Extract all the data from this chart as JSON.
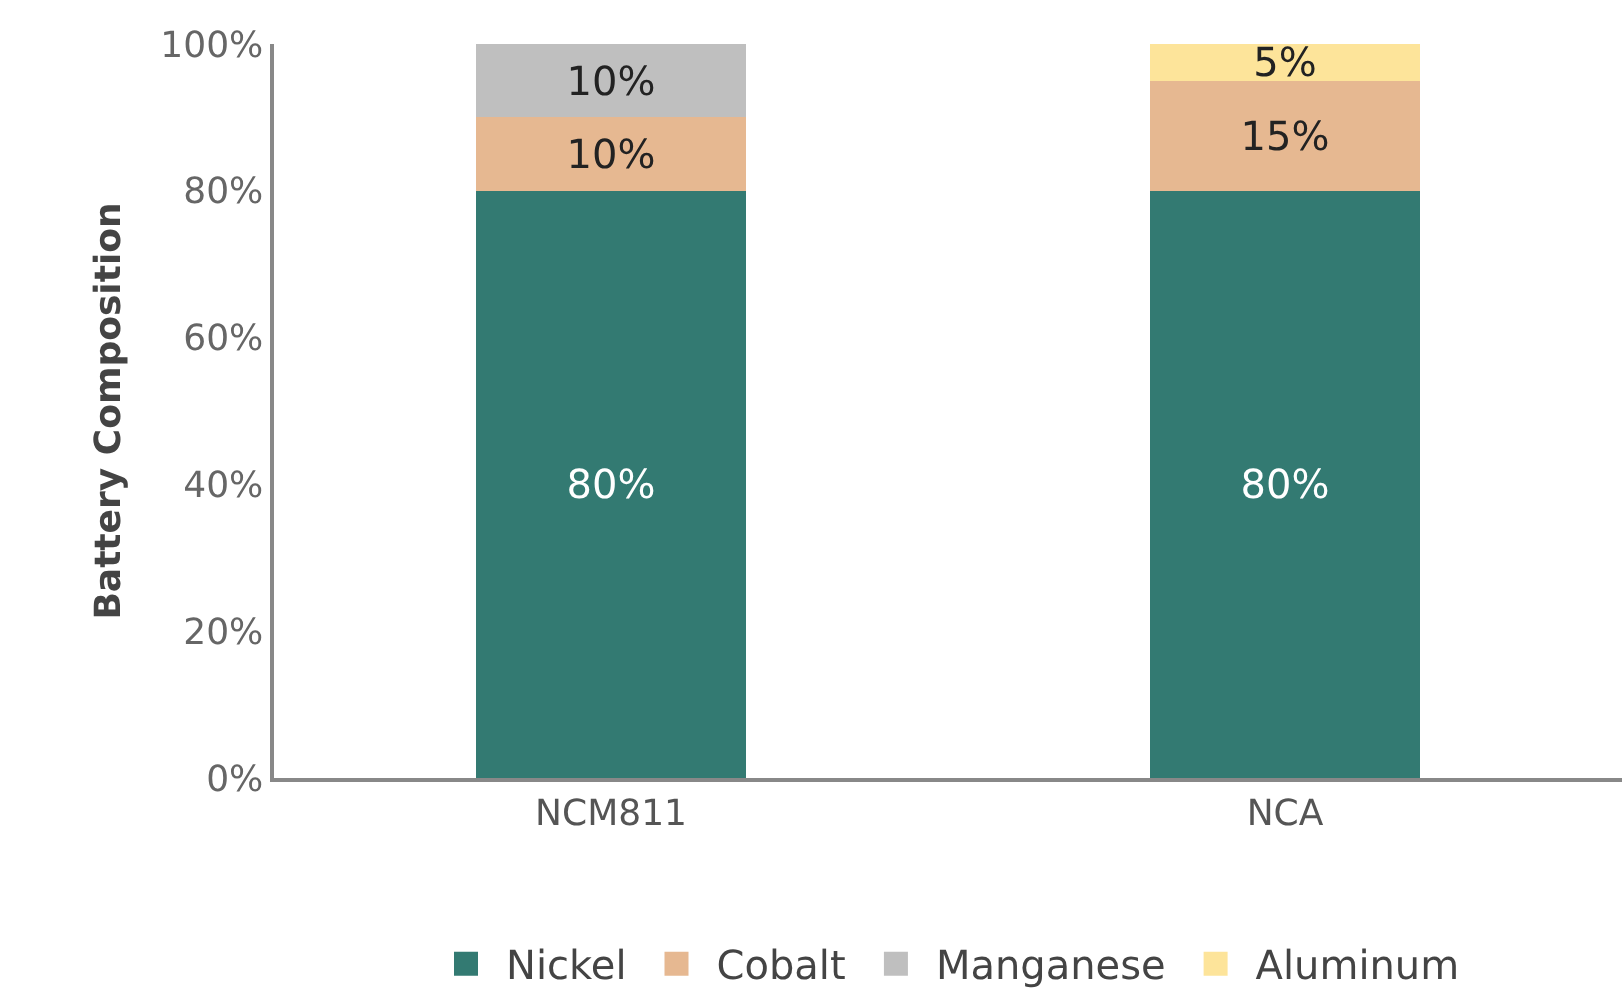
{
  "chart_data": {
    "type": "bar",
    "stacked": true,
    "ylabel": "Battery Composition",
    "categories": [
      "NCM811",
      "NCA"
    ],
    "series": [
      {
        "name": "Nickel",
        "color": "#337a72",
        "values": [
          80,
          80
        ],
        "value_labels": [
          "80%",
          "80%"
        ]
      },
      {
        "name": "Cobalt",
        "color": "#e6b891",
        "values": [
          10,
          15
        ],
        "value_labels": [
          "10%",
          "15%"
        ]
      },
      {
        "name": "Manganese",
        "color": "#bfbfbf",
        "values": [
          10,
          null
        ],
        "value_labels": [
          "10%",
          null
        ]
      },
      {
        "name": "Aluminum",
        "color": "#fde49a",
        "values": [
          null,
          5
        ],
        "value_labels": [
          null,
          "5%"
        ]
      }
    ],
    "ylim": [
      0,
      100
    ],
    "yticks": [
      {
        "value": 0,
        "label": "0%"
      },
      {
        "value": 20,
        "label": "20%"
      },
      {
        "value": 40,
        "label": "40%"
      },
      {
        "value": 60,
        "label": "60%"
      },
      {
        "value": 80,
        "label": "80%"
      },
      {
        "value": 100,
        "label": "100%"
      }
    ],
    "legend": "bottom"
  }
}
